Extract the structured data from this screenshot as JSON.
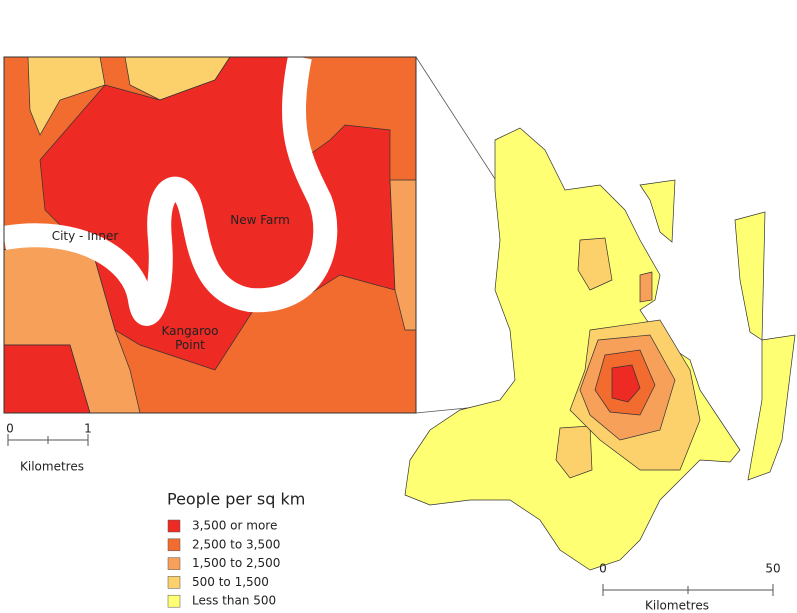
{
  "inset_map": {
    "labels": [
      "City - Inner",
      "New Farm",
      "Kangaroo Point"
    ],
    "scale": {
      "ticks": [
        "0",
        "1"
      ],
      "unit": "Kilometres"
    }
  },
  "main_map": {
    "scale": {
      "ticks": [
        "0",
        "50"
      ],
      "unit": "Kilometres"
    }
  },
  "legend": {
    "title": "People per sq km",
    "items": [
      {
        "label": "3,500 or more",
        "color": "#ee2a24"
      },
      {
        "label": "2,500 to 3,500",
        "color": "#f26b2f"
      },
      {
        "label": "1,500 to 2,500",
        "color": "#f6a05a"
      },
      {
        "label": "500 to 1,500",
        "color": "#fcd06a"
      },
      {
        "label": "Less than 500",
        "color": "#ffff73"
      }
    ]
  }
}
